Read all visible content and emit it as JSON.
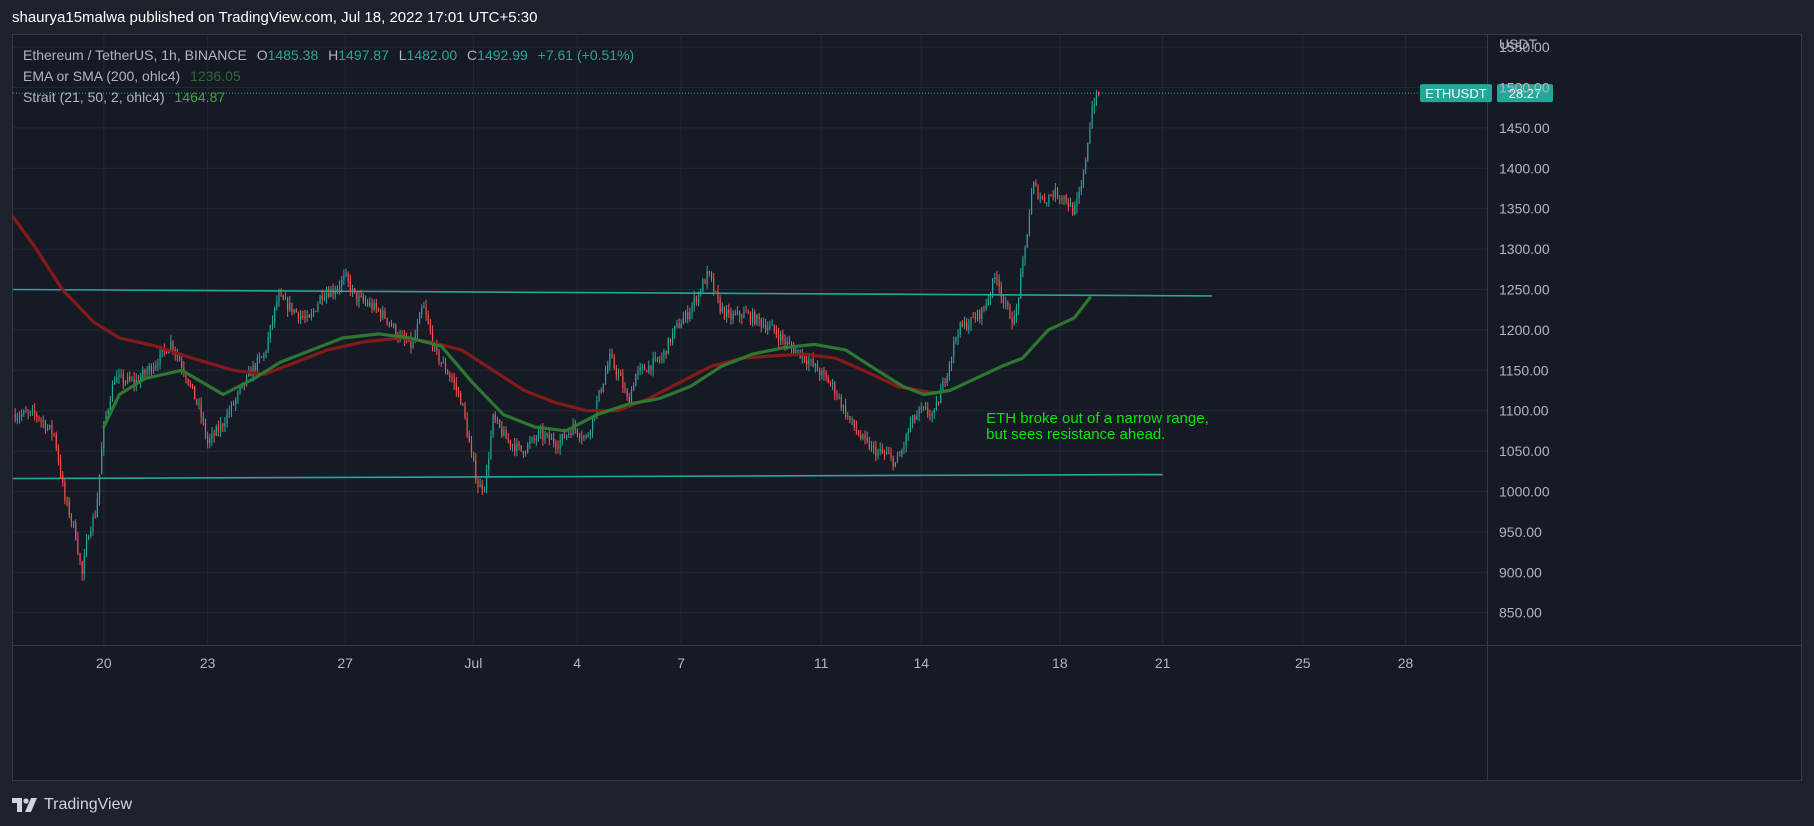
{
  "header": {
    "publish_text": "shaurya15malwa published on TradingView.com, Jul 18, 2022 17:01 UTC+5:30"
  },
  "footer": {
    "brand": "TradingView"
  },
  "legend": {
    "symbol": "Ethereum / TetherUS, 1h, BINANCE",
    "o_label": "O",
    "o_value": "1485.38",
    "h_label": "H",
    "h_value": "1497.87",
    "l_label": "L",
    "l_value": "1482.00",
    "c_label": "C",
    "c_value": "1492.99",
    "change": "+7.61 (+0.51%)",
    "ema_label": "EMA or SMA (200, ohlc4)",
    "ema_value": "1236.05",
    "strait_label": "Strait (21, 50, 2, ohlc4)",
    "strait_value": "1464.87"
  },
  "price_scale": {
    "currency": "USDT",
    "ticker_tag": "ETHUSDT",
    "countdown": "28:27"
  },
  "colors": {
    "bg": "#161a25",
    "up": "#26a69a",
    "down": "#ef5350",
    "ema": "#8b1a1a",
    "strait_up": "#2e7d32",
    "trendline": "#26a69a",
    "annotation": "#00e600"
  },
  "chart_data": {
    "type": "candlestick",
    "title": "Ethereum / TetherUS, 1h, BINANCE",
    "ylabel": "USDT",
    "ylim": [
      810,
      1565
    ],
    "y_ticks": [
      850,
      900,
      950,
      1000,
      1050,
      1100,
      1150,
      1200,
      1250,
      1300,
      1350,
      1400,
      1450,
      1500,
      1550
    ],
    "y_tick_labels": [
      "850.00",
      "900.00",
      "950.00",
      "1000.00",
      "1050.00",
      "1100.00",
      "1150.00",
      "1200.00",
      "1250.00",
      "1300.00",
      "1350.00",
      "1400.00",
      "1450.00",
      "1500.00",
      "1550.00"
    ],
    "x_range_days": [
      -2.25,
      26.15
    ],
    "x_ticks": [
      {
        "day": -0.5,
        "label": "20"
      },
      {
        "day": 1.5,
        "label": "23"
      },
      {
        "day": 4.15,
        "label": "27"
      },
      {
        "day": 6.62,
        "label": "Jul"
      },
      {
        "day": 8.62,
        "label": "4"
      },
      {
        "day": 10.62,
        "label": "7"
      },
      {
        "day": 13.32,
        "label": "11"
      },
      {
        "day": 15.25,
        "label": "14"
      },
      {
        "day": 17.92,
        "label": "18"
      },
      {
        "day": 19.9,
        "label": "21"
      },
      {
        "day": 22.6,
        "label": "25"
      },
      {
        "day": 24.58,
        "label": "28"
      }
    ],
    "price_path": [
      [
        -2.25,
        1095
      ],
      [
        -1.8,
        1095
      ],
      [
        -1.45,
        1070
      ],
      [
        -1.25,
        990
      ],
      [
        -1.05,
        950
      ],
      [
        -0.92,
        895
      ],
      [
        -0.8,
        950
      ],
      [
        -0.65,
        975
      ],
      [
        -0.5,
        1080
      ],
      [
        -0.3,
        1140
      ],
      [
        0.1,
        1135
      ],
      [
        0.5,
        1160
      ],
      [
        0.8,
        1185
      ],
      [
        1.05,
        1150
      ],
      [
        1.35,
        1100
      ],
      [
        1.5,
        1060
      ],
      [
        1.75,
        1080
      ],
      [
        2.1,
        1120
      ],
      [
        2.35,
        1150
      ],
      [
        2.6,
        1170
      ],
      [
        2.85,
        1240
      ],
      [
        3.15,
        1225
      ],
      [
        3.45,
        1210
      ],
      [
        3.7,
        1245
      ],
      [
        3.95,
        1250
      ],
      [
        4.15,
        1265
      ],
      [
        4.35,
        1240
      ],
      [
        4.65,
        1230
      ],
      [
        4.95,
        1215
      ],
      [
        5.2,
        1190
      ],
      [
        5.45,
        1180
      ],
      [
        5.65,
        1230
      ],
      [
        5.9,
        1170
      ],
      [
        6.2,
        1140
      ],
      [
        6.4,
        1110
      ],
      [
        6.58,
        1045
      ],
      [
        6.72,
        1005
      ],
      [
        6.85,
        1010
      ],
      [
        7.0,
        1090
      ],
      [
        7.25,
        1065
      ],
      [
        7.55,
        1050
      ],
      [
        7.9,
        1070
      ],
      [
        8.25,
        1060
      ],
      [
        8.55,
        1080
      ],
      [
        8.8,
        1065
      ],
      [
        9.0,
        1110
      ],
      [
        9.25,
        1165
      ],
      [
        9.45,
        1140
      ],
      [
        9.6,
        1110
      ],
      [
        9.75,
        1145
      ],
      [
        10.0,
        1155
      ],
      [
        10.25,
        1165
      ],
      [
        10.5,
        1200
      ],
      [
        10.75,
        1220
      ],
      [
        10.95,
        1245
      ],
      [
        11.15,
        1270
      ],
      [
        11.35,
        1230
      ],
      [
        11.55,
        1215
      ],
      [
        11.85,
        1220
      ],
      [
        12.15,
        1210
      ],
      [
        12.4,
        1200
      ],
      [
        12.7,
        1180
      ],
      [
        12.95,
        1170
      ],
      [
        13.25,
        1150
      ],
      [
        13.55,
        1130
      ],
      [
        13.85,
        1090
      ],
      [
        14.1,
        1065
      ],
      [
        14.35,
        1050
      ],
      [
        14.6,
        1045
      ],
      [
        14.75,
        1035
      ],
      [
        14.85,
        1045
      ],
      [
        15.05,
        1085
      ],
      [
        15.25,
        1100
      ],
      [
        15.5,
        1095
      ],
      [
        15.75,
        1150
      ],
      [
        15.95,
        1200
      ],
      [
        16.2,
        1210
      ],
      [
        16.45,
        1225
      ],
      [
        16.7,
        1270
      ],
      [
        16.85,
        1230
      ],
      [
        17.05,
        1210
      ],
      [
        17.25,
        1300
      ],
      [
        17.4,
        1380
      ],
      [
        17.6,
        1360
      ],
      [
        17.8,
        1370
      ],
      [
        18.0,
        1365
      ],
      [
        18.2,
        1345
      ],
      [
        18.35,
        1380
      ],
      [
        18.55,
        1480
      ],
      [
        18.7,
        1495
      ]
    ],
    "series": [
      {
        "name": "EMA or SMA (200, ohlc4)",
        "color": "#8b1a1a",
        "points": [
          [
            -2.25,
            1340
          ],
          [
            -1.8,
            1300
          ],
          [
            -1.3,
            1250
          ],
          [
            -0.7,
            1210
          ],
          [
            -0.2,
            1190
          ],
          [
            0.5,
            1180
          ],
          [
            1.2,
            1165
          ],
          [
            2.0,
            1150
          ],
          [
            2.6,
            1145
          ],
          [
            3.2,
            1160
          ],
          [
            3.8,
            1175
          ],
          [
            4.5,
            1185
          ],
          [
            5.2,
            1190
          ],
          [
            5.8,
            1185
          ],
          [
            6.4,
            1175
          ],
          [
            7.0,
            1150
          ],
          [
            7.6,
            1125
          ],
          [
            8.2,
            1110
          ],
          [
            8.8,
            1100
          ],
          [
            9.4,
            1100
          ],
          [
            10.0,
            1115
          ],
          [
            10.6,
            1135
          ],
          [
            11.2,
            1155
          ],
          [
            11.8,
            1165
          ],
          [
            12.4,
            1168
          ],
          [
            13.0,
            1170
          ],
          [
            13.6,
            1165
          ],
          [
            14.2,
            1148
          ],
          [
            14.8,
            1130
          ],
          [
            15.4,
            1123
          ],
          [
            15.6,
            1122
          ]
        ]
      },
      {
        "name": "Strait (21, 50, 2, ohlc4)",
        "color": "#2e7d32",
        "points": [
          [
            -0.5,
            1080
          ],
          [
            -0.2,
            1120
          ],
          [
            0.3,
            1140
          ],
          [
            1.0,
            1150
          ],
          [
            1.8,
            1120
          ],
          [
            2.4,
            1140
          ],
          [
            2.9,
            1160
          ],
          [
            3.5,
            1175
          ],
          [
            4.1,
            1190
          ],
          [
            4.8,
            1195
          ],
          [
            5.4,
            1190
          ],
          [
            6.0,
            1180
          ],
          [
            6.6,
            1135
          ],
          [
            7.2,
            1095
          ],
          [
            7.8,
            1080
          ],
          [
            8.4,
            1075
          ],
          [
            9.0,
            1095
          ],
          [
            9.6,
            1108
          ],
          [
            10.2,
            1115
          ],
          [
            10.8,
            1130
          ],
          [
            11.4,
            1155
          ],
          [
            12.0,
            1170
          ],
          [
            12.6,
            1178
          ],
          [
            13.2,
            1182
          ],
          [
            13.8,
            1175
          ],
          [
            14.4,
            1150
          ],
          [
            14.9,
            1130
          ],
          [
            15.3,
            1120
          ],
          [
            15.8,
            1125
          ],
          [
            16.3,
            1140
          ],
          [
            16.8,
            1155
          ],
          [
            17.2,
            1165
          ],
          [
            17.7,
            1200
          ],
          [
            18.2,
            1215
          ],
          [
            18.5,
            1240
          ]
        ]
      }
    ],
    "trendlines": [
      {
        "name": "resistance-line",
        "from": [
          -2.25,
          1250
        ],
        "to": [
          20.85,
          1242
        ]
      },
      {
        "name": "support-line",
        "from": [
          -2.25,
          1016
        ],
        "to": [
          19.9,
          1021
        ]
      }
    ],
    "last_price": 1492.99,
    "annotation": {
      "lines": [
        "ETH broke out of a narrow range,",
        "but sees resistance ahead."
      ],
      "anchor": [
        16.5,
        1085
      ]
    }
  }
}
